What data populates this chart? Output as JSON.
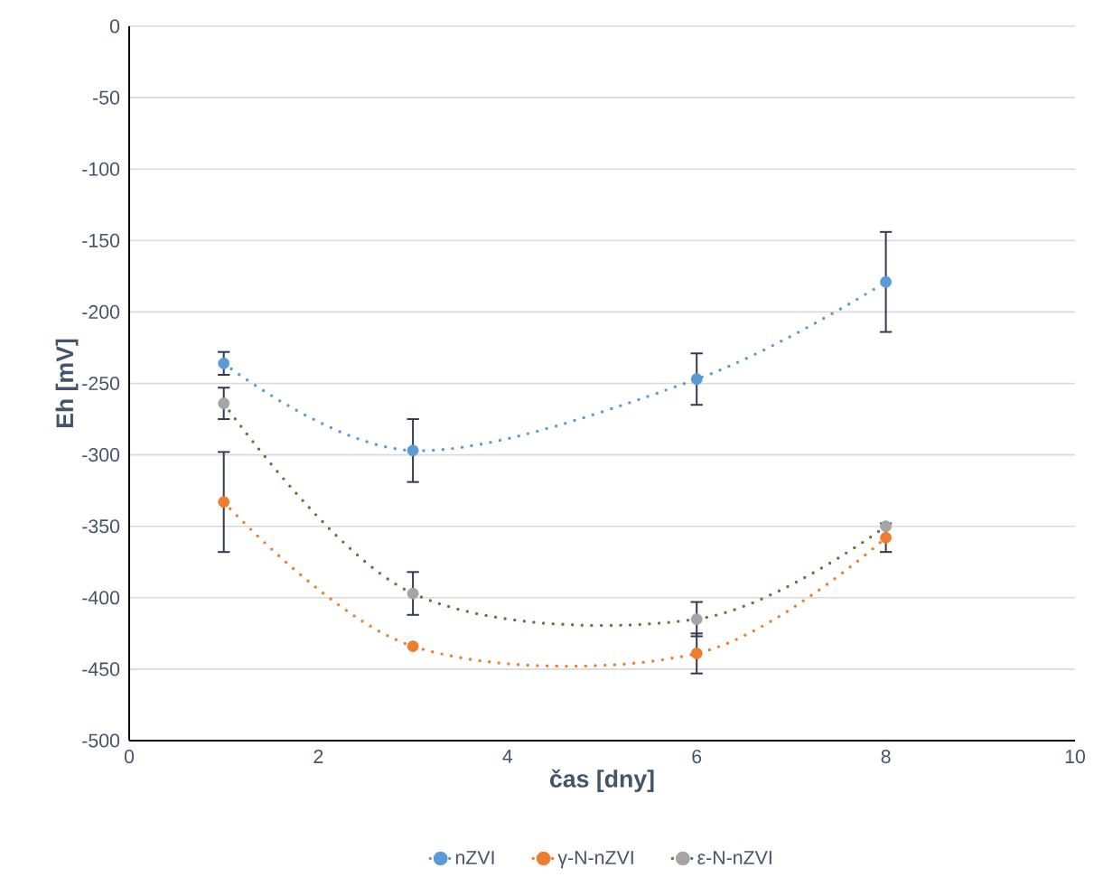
{
  "chart_data": {
    "type": "line",
    "xlabel": "čas [dny]",
    "ylabel": "Eh [mV]",
    "x": [
      1,
      3,
      6,
      8
    ],
    "series": [
      {
        "name": "nZVI",
        "color": "#5b9bd5",
        "values": [
          -236,
          -297,
          -247,
          -179
        ],
        "errors": [
          8,
          22,
          18,
          35
        ]
      },
      {
        "name": "γ-N-nZVI",
        "color": "#ed7d31",
        "values": [
          -333,
          -434,
          -439,
          -358
        ],
        "errors": [
          35,
          null,
          14,
          10
        ]
      },
      {
        "name": "ε-N-nZVI",
        "color": "#548235",
        "colors": [
          "#a5a5a5",
          "#a5a5a5",
          "#a5a5a5",
          "#a5a5a5"
        ],
        "values": [
          -264,
          -397,
          -415,
          -350
        ],
        "errors": [
          11,
          15,
          12,
          null
        ]
      }
    ],
    "xlim": [
      0,
      10
    ],
    "xticks": [
      0,
      2,
      4,
      6,
      8,
      10
    ],
    "ylim": [
      -500,
      0
    ],
    "yticks": [
      -500,
      -450,
      -400,
      -350,
      -300,
      -250,
      -200,
      -150,
      -100,
      -50,
      0
    ],
    "grid": "y",
    "legend": "bottom",
    "marker": "circle",
    "line_style": "dotted"
  }
}
